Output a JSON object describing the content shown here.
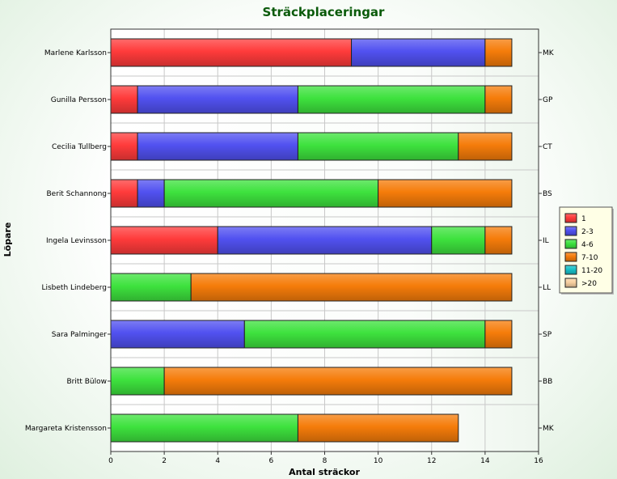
{
  "chart_data": {
    "type": "bar",
    "orientation": "horizontal",
    "stacked": true,
    "title": "Sträckplaceringar",
    "xlabel": "Antal sträckor",
    "ylabel": "Löpare",
    "xlim": [
      0,
      16
    ],
    "xticks": [
      0,
      2,
      4,
      6,
      8,
      10,
      12,
      14,
      16
    ],
    "grid": true,
    "legend_position": "right",
    "categories": [
      "Marlene Karlsson",
      "Gunilla Persson",
      "Cecilia Tullberg",
      "Berit Schannong",
      "Ingela Levinsson",
      "Lisbeth Lindeberg",
      "Sara Palminger",
      "Britt Bülow",
      "Margareta Kristensson"
    ],
    "secondary_labels": [
      "MK",
      "GP",
      "CT",
      "BS",
      "IL",
      "LL",
      "SP",
      "BB",
      "MK"
    ],
    "series": [
      {
        "name": "1",
        "color": "#ff3b3b",
        "values": [
          9,
          1,
          1,
          1,
          4,
          0,
          0,
          0,
          0
        ]
      },
      {
        "name": "2-3",
        "color": "#5151f0",
        "values": [
          5,
          6,
          6,
          1,
          8,
          0,
          5,
          0,
          0
        ]
      },
      {
        "name": "4-6",
        "color": "#3ee23e",
        "values": [
          0,
          7,
          6,
          8,
          2,
          3,
          9,
          2,
          7
        ]
      },
      {
        "name": "7-10",
        "color": "#f57c0a",
        "values": [
          1,
          1,
          2,
          5,
          1,
          12,
          1,
          13,
          6
        ]
      },
      {
        "name": "11-20",
        "color": "#18c0c8",
        "values": [
          0,
          0,
          0,
          0,
          0,
          0,
          0,
          0,
          0
        ]
      },
      {
        "name": ">20",
        "color": "#f8d0a0",
        "values": [
          0,
          0,
          0,
          0,
          0,
          0,
          0,
          0,
          0
        ]
      }
    ]
  }
}
